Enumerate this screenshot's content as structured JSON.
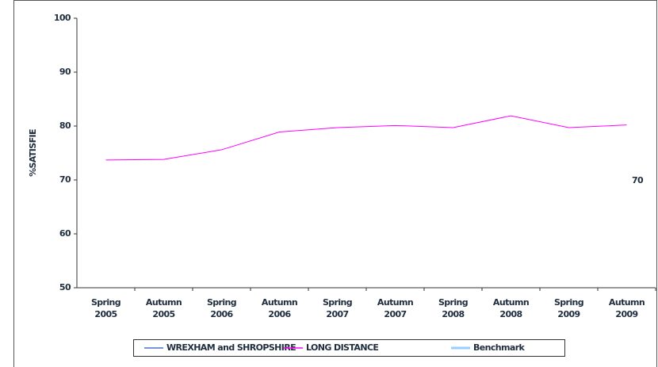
{
  "chart_data": {
    "type": "line",
    "y_label": "%SATISFIE",
    "categories": [
      "Spring 2005",
      "Autumn 2005",
      "Spring 2006",
      "Autumn 2006",
      "Spring 2007",
      "Autumn 2007",
      "Spring 2008",
      "Autumn 2008",
      "Spring 2009",
      "Autumn 2009"
    ],
    "series": [
      {
        "name": "WREXHAM and SHROPSHIRE",
        "color": "#4f6fd0",
        "values": [
          null,
          null,
          null,
          null,
          null,
          null,
          null,
          null,
          null,
          null
        ]
      },
      {
        "name": "LONG DISTANCE",
        "color": "#ff00ff",
        "values": [
          73.7,
          73.8,
          75.6,
          78.9,
          79.7,
          80.1,
          79.7,
          81.9,
          79.7,
          80.2
        ]
      },
      {
        "name": "Benchmark",
        "color": "#99ccff",
        "values": [
          null,
          null,
          null,
          null,
          null,
          null,
          null,
          null,
          null,
          null
        ]
      }
    ],
    "annotations": [
      "70"
    ],
    "ylim": [
      50,
      100
    ],
    "yticks": [
      50,
      60,
      70,
      80,
      90,
      100
    ],
    "legend": "bottom"
  }
}
